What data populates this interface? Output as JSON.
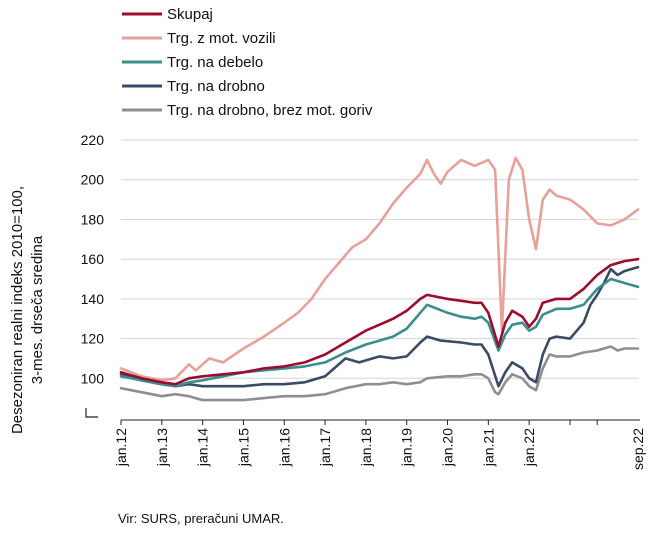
{
  "chart_data": {
    "type": "line",
    "ylabel_lines": [
      "Desezoniran realni indeks 2010=100,",
      "3-mes. drseča sredina"
    ],
    "xlabel": "",
    "ylim": [
      80,
      220
    ],
    "y_ticks": [
      "100",
      "120",
      "140",
      "160",
      "180",
      "200",
      "220"
    ],
    "x_ticks": [
      "jan.12",
      "jan.13",
      "jan.14",
      "jan.15",
      "jan.16",
      "jan.17",
      "jan.18",
      "jan.19",
      "jan.20",
      "jan.21",
      "jan.22",
      "sep.22"
    ],
    "legend_position": "top-left",
    "series": [
      {
        "name": "Skupaj",
        "color": "#9b0c2e",
        "points": [
          [
            0,
            103
          ],
          [
            6,
            100
          ],
          [
            12,
            98
          ],
          [
            16,
            97
          ],
          [
            20,
            100
          ],
          [
            24,
            101
          ],
          [
            30,
            102
          ],
          [
            36,
            103
          ],
          [
            42,
            105
          ],
          [
            48,
            106
          ],
          [
            54,
            108
          ],
          [
            60,
            112
          ],
          [
            66,
            118
          ],
          [
            72,
            124
          ],
          [
            76,
            127
          ],
          [
            80,
            130
          ],
          [
            84,
            134
          ],
          [
            88,
            140
          ],
          [
            90,
            142
          ],
          [
            96,
            140
          ],
          [
            100,
            139
          ],
          [
            104,
            138
          ],
          [
            106,
            138
          ],
          [
            108,
            133
          ],
          [
            111,
            116
          ],
          [
            113,
            128
          ],
          [
            115,
            134
          ],
          [
            118,
            131
          ],
          [
            120,
            126
          ],
          [
            122,
            130
          ],
          [
            124,
            138
          ],
          [
            128,
            140
          ],
          [
            132,
            140
          ],
          [
            136,
            145
          ],
          [
            140,
            152
          ],
          [
            144,
            157
          ],
          [
            148,
            159
          ],
          [
            152,
            160
          ]
        ]
      },
      {
        "name": "Trg. z mot. vozili",
        "color": "#e8a09a",
        "points": [
          [
            0,
            105
          ],
          [
            6,
            101
          ],
          [
            12,
            99
          ],
          [
            16,
            100
          ],
          [
            20,
            107
          ],
          [
            22,
            104
          ],
          [
            26,
            110
          ],
          [
            30,
            108
          ],
          [
            36,
            115
          ],
          [
            42,
            121
          ],
          [
            48,
            128
          ],
          [
            52,
            133
          ],
          [
            56,
            140
          ],
          [
            60,
            150
          ],
          [
            64,
            158
          ],
          [
            68,
            166
          ],
          [
            72,
            170
          ],
          [
            76,
            178
          ],
          [
            80,
            188
          ],
          [
            84,
            196
          ],
          [
            88,
            203
          ],
          [
            90,
            210
          ],
          [
            92,
            203
          ],
          [
            94,
            198
          ],
          [
            96,
            204
          ],
          [
            100,
            210
          ],
          [
            104,
            207
          ],
          [
            108,
            210
          ],
          [
            110,
            205
          ],
          [
            112,
            124
          ],
          [
            114,
            200
          ],
          [
            116,
            211
          ],
          [
            118,
            205
          ],
          [
            120,
            180
          ],
          [
            122,
            165
          ],
          [
            124,
            190
          ],
          [
            126,
            195
          ],
          [
            128,
            192
          ],
          [
            132,
            190
          ],
          [
            136,
            185
          ],
          [
            140,
            178
          ],
          [
            144,
            177
          ],
          [
            148,
            180
          ],
          [
            152,
            185
          ]
        ]
      },
      {
        "name": "Trg. na debelo",
        "color": "#3a8e8d",
        "points": [
          [
            0,
            101
          ],
          [
            6,
            99
          ],
          [
            12,
            97
          ],
          [
            16,
            96
          ],
          [
            20,
            98
          ],
          [
            24,
            99
          ],
          [
            30,
            101
          ],
          [
            36,
            103
          ],
          [
            42,
            104
          ],
          [
            48,
            105
          ],
          [
            54,
            106
          ],
          [
            60,
            108
          ],
          [
            66,
            113
          ],
          [
            72,
            117
          ],
          [
            76,
            119
          ],
          [
            80,
            121
          ],
          [
            84,
            125
          ],
          [
            88,
            133
          ],
          [
            90,
            137
          ],
          [
            96,
            133
          ],
          [
            100,
            131
          ],
          [
            104,
            130
          ],
          [
            106,
            131
          ],
          [
            108,
            128
          ],
          [
            111,
            114
          ],
          [
            113,
            122
          ],
          [
            115,
            127
          ],
          [
            118,
            128
          ],
          [
            120,
            124
          ],
          [
            122,
            126
          ],
          [
            124,
            132
          ],
          [
            128,
            135
          ],
          [
            132,
            135
          ],
          [
            136,
            137
          ],
          [
            140,
            145
          ],
          [
            144,
            150
          ],
          [
            148,
            148
          ],
          [
            152,
            146
          ]
        ]
      },
      {
        "name": "Trg. na drobno",
        "color": "#3a4b66",
        "points": [
          [
            0,
            102
          ],
          [
            6,
            99
          ],
          [
            12,
            97
          ],
          [
            16,
            96
          ],
          [
            20,
            97
          ],
          [
            24,
            96
          ],
          [
            30,
            96
          ],
          [
            36,
            96
          ],
          [
            42,
            97
          ],
          [
            48,
            97
          ],
          [
            54,
            98
          ],
          [
            60,
            101
          ],
          [
            64,
            107
          ],
          [
            66,
            110
          ],
          [
            70,
            108
          ],
          [
            76,
            111
          ],
          [
            80,
            110
          ],
          [
            84,
            111
          ],
          [
            88,
            118
          ],
          [
            90,
            121
          ],
          [
            94,
            119
          ],
          [
            100,
            118
          ],
          [
            104,
            117
          ],
          [
            106,
            117
          ],
          [
            108,
            112
          ],
          [
            111,
            96
          ],
          [
            113,
            103
          ],
          [
            115,
            108
          ],
          [
            118,
            105
          ],
          [
            120,
            100
          ],
          [
            122,
            98
          ],
          [
            124,
            112
          ],
          [
            126,
            120
          ],
          [
            128,
            121
          ],
          [
            132,
            120
          ],
          [
            136,
            128
          ],
          [
            138,
            137
          ],
          [
            140,
            142
          ],
          [
            142,
            148
          ],
          [
            144,
            155
          ],
          [
            146,
            152
          ],
          [
            148,
            154
          ],
          [
            152,
            156
          ]
        ]
      },
      {
        "name": "Trg. na drobno, brez mot. goriv",
        "color": "#8f8f8f",
        "points": [
          [
            0,
            95
          ],
          [
            6,
            93
          ],
          [
            12,
            91
          ],
          [
            16,
            92
          ],
          [
            20,
            91
          ],
          [
            24,
            89
          ],
          [
            30,
            89
          ],
          [
            36,
            89
          ],
          [
            42,
            90
          ],
          [
            48,
            91
          ],
          [
            54,
            91
          ],
          [
            60,
            92
          ],
          [
            66,
            95
          ],
          [
            72,
            97
          ],
          [
            76,
            97
          ],
          [
            80,
            98
          ],
          [
            84,
            97
          ],
          [
            88,
            98
          ],
          [
            90,
            100
          ],
          [
            96,
            101
          ],
          [
            100,
            101
          ],
          [
            104,
            102
          ],
          [
            106,
            102
          ],
          [
            108,
            100
          ],
          [
            110,
            93
          ],
          [
            111,
            92
          ],
          [
            113,
            98
          ],
          [
            115,
            102
          ],
          [
            118,
            100
          ],
          [
            120,
            96
          ],
          [
            122,
            94
          ],
          [
            124,
            105
          ],
          [
            126,
            112
          ],
          [
            128,
            111
          ],
          [
            132,
            111
          ],
          [
            136,
            113
          ],
          [
            140,
            114
          ],
          [
            144,
            116
          ],
          [
            146,
            114
          ],
          [
            148,
            115
          ],
          [
            152,
            115
          ]
        ]
      }
    ]
  },
  "source_text": "Vir: SURS, preračuni UMAR."
}
